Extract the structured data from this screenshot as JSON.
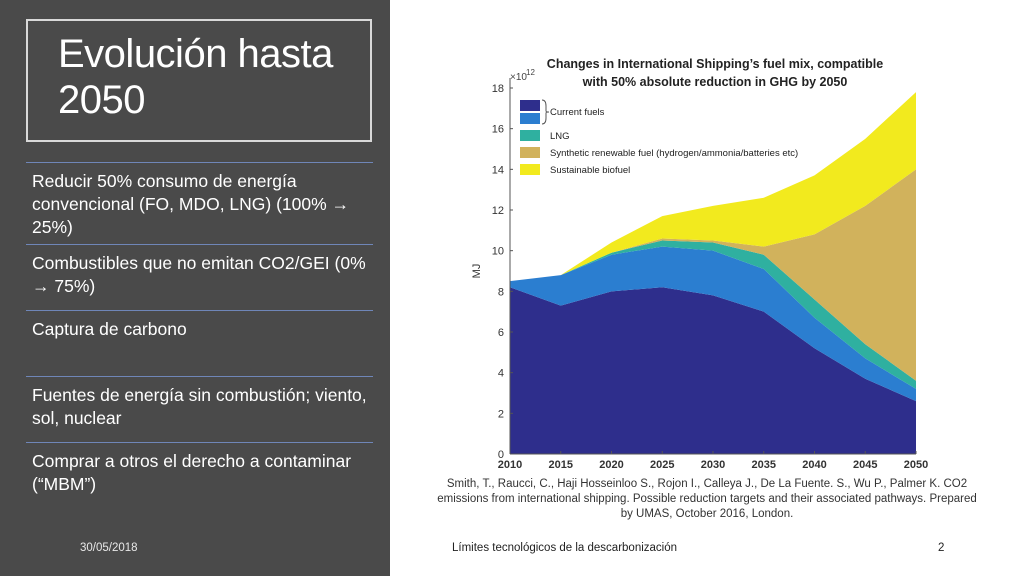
{
  "slide": {
    "title": "Evolución hasta 2050",
    "bullets": [
      "Reducir 50% consumo de energía convencional (FO, MDO, LNG) (100% → 25%)",
      "Combustibles que no emitan CO2/GEI (0% → 75%)",
      "Captura de carbono",
      "Fuentes de energía sin combustión; viento, sol, nuclear",
      "Comprar a otros el derecho a contaminar (“MBM”)"
    ],
    "footer": {
      "date": "30/05/2018",
      "center": "Límites tecnológicos de la descarbonización",
      "page": "2"
    }
  },
  "citation": "Smith, T., Raucci, C., Haji Hosseinloo S., Rojon I., Calleya J., De La Fuente. S., Wu P., Palmer K. CO2 emissions from international shipping. Possible reduction targets and their associated pathways. Prepared by UMAS, October 2016, London.",
  "chart_data": {
    "type": "area",
    "title": "Changes in International Shipping’s fuel mix, compatible with 50% absolute reduction in GHG by 2050",
    "ylabel": "MJ",
    "xlabel": "",
    "exponent_label": "×10",
    "exponent_power": "12",
    "x": [
      2010,
      2015,
      2020,
      2025,
      2030,
      2035,
      2040,
      2045,
      2050
    ],
    "ylim": [
      0,
      18
    ],
    "yticks": [
      0,
      2,
      4,
      6,
      8,
      10,
      12,
      14,
      16,
      18
    ],
    "series": [
      {
        "name": "Current fuels (dark)",
        "color": "#2e2e8c",
        "values": [
          8.2,
          7.3,
          8.0,
          8.2,
          7.8,
          7.0,
          5.2,
          3.7,
          2.6
        ]
      },
      {
        "name": "Current fuels (light)",
        "color": "#2b7ed0",
        "values": [
          0.3,
          1.5,
          1.8,
          2.0,
          2.2,
          2.1,
          1.5,
          1.0,
          0.6
        ]
      },
      {
        "name": "LNG",
        "color": "#2fb0a0",
        "values": [
          0.0,
          0.0,
          0.1,
          0.3,
          0.4,
          0.7,
          0.9,
          0.7,
          0.4
        ]
      },
      {
        "name": "Synthetic renewable fuel (hydrogen/ammonia/batteries etc)",
        "color": "#d1b25c",
        "values": [
          0.0,
          0.0,
          0.0,
          0.1,
          0.1,
          0.4,
          3.2,
          6.8,
          10.4
        ]
      },
      {
        "name": "Sustainable biofuel",
        "color": "#f2ea1e",
        "values": [
          0.0,
          0.0,
          0.5,
          1.1,
          1.7,
          2.4,
          2.9,
          3.3,
          3.8
        ]
      }
    ],
    "legend": [
      {
        "label": "Current fuels",
        "colors": [
          "#2e2e8c",
          "#2b7ed0"
        ]
      },
      {
        "label": "LNG",
        "colors": [
          "#2fb0a0"
        ]
      },
      {
        "label": "Synthetic renewable fuel (hydrogen/ammonia/batteries etc)",
        "colors": [
          "#d1b25c"
        ]
      },
      {
        "label": "Sustainable biofuel",
        "colors": [
          "#f2ea1e"
        ]
      }
    ],
    "legend_position": "top-left"
  }
}
